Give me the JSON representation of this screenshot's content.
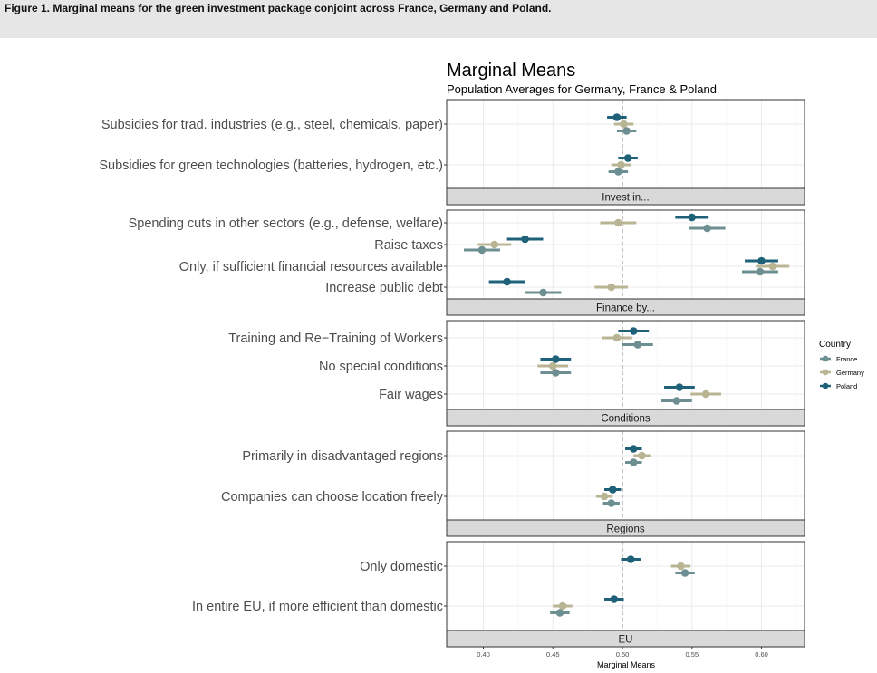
{
  "figure": {
    "caption": "Figure 1. Marginal means for the green investment package conjoint across France, Germany and Poland."
  },
  "colors": {
    "France": "#6e8f91",
    "Germany": "#b8b494",
    "Poland": "#1e6178",
    "strip_fill": "#d9d9d9",
    "panel_border": "#333333",
    "grid": "#ebebeb"
  },
  "chart_data": {
    "type": "scatter",
    "title": "Marginal Means",
    "subtitle": "Population Averages for Germany, France & Poland",
    "xlabel": "Marginal Means",
    "ylabel": "",
    "xlim": [
      0.37,
      0.63
    ],
    "xticks": [
      0.4,
      0.45,
      0.5,
      0.55,
      0.6
    ],
    "xtick_labels": [
      "0.40",
      "0.45",
      "0.50",
      "0.55",
      "0.60"
    ],
    "reference_line": 0.5,
    "grid": true,
    "legend": {
      "title": "Country",
      "position": "right",
      "items": [
        "France",
        "Germany",
        "Poland"
      ]
    },
    "panels": [
      {
        "strip": "Invest in...",
        "levels": [
          {
            "label": "Subsidies for trad. industries (e.g., steel, chemicals, paper)",
            "estimates": [
              {
                "country": "Poland",
                "estimate": 0.496,
                "lower": 0.489,
                "upper": 0.503
              },
              {
                "country": "Germany",
                "estimate": 0.501,
                "lower": 0.494,
                "upper": 0.508
              },
              {
                "country": "France",
                "estimate": 0.503,
                "lower": 0.496,
                "upper": 0.51
              }
            ]
          },
          {
            "label": "Subsidies for green technologies (batteries, hydrogen, etc.)",
            "estimates": [
              {
                "country": "Poland",
                "estimate": 0.504,
                "lower": 0.497,
                "upper": 0.511
              },
              {
                "country": "Germany",
                "estimate": 0.499,
                "lower": 0.492,
                "upper": 0.506
              },
              {
                "country": "France",
                "estimate": 0.497,
                "lower": 0.49,
                "upper": 0.504
              }
            ]
          }
        ]
      },
      {
        "strip": "Finance by...",
        "levels": [
          {
            "label": "Spending cuts in other sectors (e.g., defense, welfare)",
            "estimates": [
              {
                "country": "Poland",
                "estimate": 0.55,
                "lower": 0.538,
                "upper": 0.562
              },
              {
                "country": "Germany",
                "estimate": 0.497,
                "lower": 0.484,
                "upper": 0.51
              },
              {
                "country": "France",
                "estimate": 0.561,
                "lower": 0.548,
                "upper": 0.574
              }
            ]
          },
          {
            "label": "Raise taxes",
            "estimates": [
              {
                "country": "Poland",
                "estimate": 0.43,
                "lower": 0.417,
                "upper": 0.443
              },
              {
                "country": "Germany",
                "estimate": 0.408,
                "lower": 0.396,
                "upper": 0.42
              },
              {
                "country": "France",
                "estimate": 0.399,
                "lower": 0.386,
                "upper": 0.412
              }
            ]
          },
          {
            "label": "Only, if sufficient financial resources available",
            "estimates": [
              {
                "country": "Poland",
                "estimate": 0.6,
                "lower": 0.588,
                "upper": 0.612
              },
              {
                "country": "Germany",
                "estimate": 0.608,
                "lower": 0.596,
                "upper": 0.62
              },
              {
                "country": "France",
                "estimate": 0.599,
                "lower": 0.586,
                "upper": 0.612
              }
            ]
          },
          {
            "label": "Increase public debt",
            "estimates": [
              {
                "country": "Poland",
                "estimate": 0.417,
                "lower": 0.404,
                "upper": 0.43
              },
              {
                "country": "Germany",
                "estimate": 0.492,
                "lower": 0.48,
                "upper": 0.504
              },
              {
                "country": "France",
                "estimate": 0.443,
                "lower": 0.43,
                "upper": 0.456
              }
            ]
          }
        ]
      },
      {
        "strip": "Conditions",
        "levels": [
          {
            "label": "Training and Re−Training of Workers",
            "estimates": [
              {
                "country": "Poland",
                "estimate": 0.508,
                "lower": 0.497,
                "upper": 0.519
              },
              {
                "country": "Germany",
                "estimate": 0.496,
                "lower": 0.485,
                "upper": 0.507
              },
              {
                "country": "France",
                "estimate": 0.511,
                "lower": 0.5,
                "upper": 0.522
              }
            ]
          },
          {
            "label": "No special conditions",
            "estimates": [
              {
                "country": "Poland",
                "estimate": 0.452,
                "lower": 0.441,
                "upper": 0.463
              },
              {
                "country": "Germany",
                "estimate": 0.45,
                "lower": 0.439,
                "upper": 0.461
              },
              {
                "country": "France",
                "estimate": 0.452,
                "lower": 0.441,
                "upper": 0.463
              }
            ]
          },
          {
            "label": "Fair wages",
            "estimates": [
              {
                "country": "Poland",
                "estimate": 0.541,
                "lower": 0.53,
                "upper": 0.552
              },
              {
                "country": "Germany",
                "estimate": 0.56,
                "lower": 0.549,
                "upper": 0.571
              },
              {
                "country": "France",
                "estimate": 0.539,
                "lower": 0.528,
                "upper": 0.55
              }
            ]
          }
        ]
      },
      {
        "strip": "Regions",
        "levels": [
          {
            "label": "Primarily in disadvantaged regions",
            "estimates": [
              {
                "country": "Poland",
                "estimate": 0.508,
                "lower": 0.502,
                "upper": 0.514
              },
              {
                "country": "Germany",
                "estimate": 0.514,
                "lower": 0.508,
                "upper": 0.52
              },
              {
                "country": "France",
                "estimate": 0.508,
                "lower": 0.502,
                "upper": 0.514
              }
            ]
          },
          {
            "label": "Companies can choose location freely",
            "estimates": [
              {
                "country": "Poland",
                "estimate": 0.493,
                "lower": 0.487,
                "upper": 0.499
              },
              {
                "country": "Germany",
                "estimate": 0.487,
                "lower": 0.481,
                "upper": 0.493
              },
              {
                "country": "France",
                "estimate": 0.492,
                "lower": 0.486,
                "upper": 0.498
              }
            ]
          }
        ]
      },
      {
        "strip": "EU",
        "levels": [
          {
            "label": "Only domestic",
            "estimates": [
              {
                "country": "Poland",
                "estimate": 0.506,
                "lower": 0.499,
                "upper": 0.513
              },
              {
                "country": "Germany",
                "estimate": 0.542,
                "lower": 0.535,
                "upper": 0.549
              },
              {
                "country": "France",
                "estimate": 0.545,
                "lower": 0.538,
                "upper": 0.552
              }
            ]
          },
          {
            "label": "In entire EU, if more efficient than domestic",
            "estimates": [
              {
                "country": "Poland",
                "estimate": 0.494,
                "lower": 0.487,
                "upper": 0.501
              },
              {
                "country": "Germany",
                "estimate": 0.457,
                "lower": 0.45,
                "upper": 0.464
              },
              {
                "country": "France",
                "estimate": 0.455,
                "lower": 0.448,
                "upper": 0.462
              }
            ]
          }
        ]
      }
    ]
  }
}
